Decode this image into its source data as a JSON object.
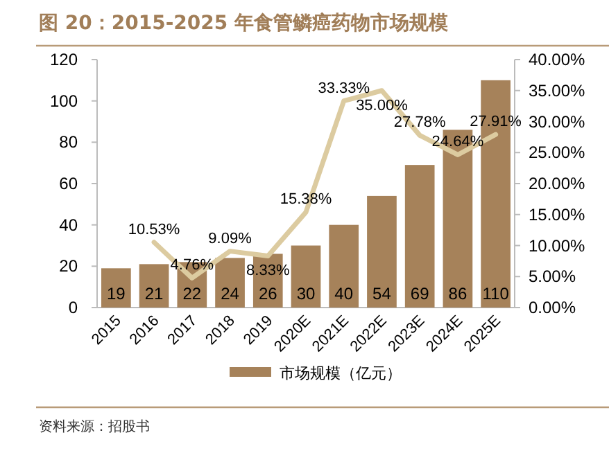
{
  "chart_data": {
    "type": "bar",
    "title": "图 20：2015-2025 年食管鳞癌药物市场规模",
    "categories": [
      "2015",
      "2016",
      "2017",
      "2018",
      "2019",
      "2020E",
      "2021E",
      "2022E",
      "2023E",
      "2024E",
      "2025E"
    ],
    "series": [
      {
        "name": "市场规模（亿元）",
        "color": "#a6825a",
        "values": [
          19,
          21,
          22,
          24,
          26,
          30,
          40,
          54,
          69,
          86,
          110
        ],
        "value_labels": [
          "19",
          "21",
          "22",
          "24",
          "26",
          "30",
          "40",
          "54",
          "69",
          "86",
          "110"
        ]
      },
      {
        "type": "line",
        "axis": "y2",
        "color": "#dccba0",
        "values": [
          null,
          10.53,
          4.76,
          9.09,
          8.33,
          15.38,
          33.33,
          35.0,
          27.78,
          24.64,
          27.91
        ],
        "value_labels": [
          null,
          "10.53%",
          "4.76%",
          "9.09%",
          "8.33%",
          "15.38%",
          "33.33%",
          "35.00%",
          "27.78%",
          "24.64%",
          "27.91%"
        ]
      }
    ],
    "ylim": [
      0,
      120
    ],
    "yticks": [
      0,
      20,
      40,
      60,
      80,
      100,
      120
    ],
    "y2lim": [
      0,
      40
    ],
    "y2ticks": [
      {
        "value": 0,
        "label": "0.00%"
      },
      {
        "value": 5,
        "label": "5.00%"
      },
      {
        "value": 10,
        "label": "10.00%"
      },
      {
        "value": 15,
        "label": "15.00%"
      },
      {
        "value": 20,
        "label": "20.00%"
      },
      {
        "value": 25,
        "label": "25.00%"
      },
      {
        "value": 30,
        "label": "30.00%"
      },
      {
        "value": 35,
        "label": "35.00%"
      },
      {
        "value": 40,
        "label": "40.00%"
      }
    ],
    "legend": "bottom",
    "annotations": [
      "资料来源：招股书"
    ]
  }
}
